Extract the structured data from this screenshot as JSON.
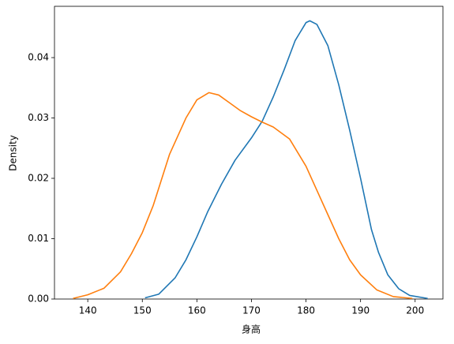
{
  "chart_data": {
    "type": "line",
    "xlabel": "身高",
    "ylabel": "Density",
    "xlim": [
      133.9,
      205.1
    ],
    "ylim": [
      0,
      0.0485
    ],
    "xticks": [
      140,
      150,
      160,
      170,
      180,
      190,
      200
    ],
    "yticks": [
      {
        "value": 0,
        "label": "0.00"
      },
      {
        "value": 0.01,
        "label": "0.01"
      },
      {
        "value": 0.02,
        "label": "0.02"
      },
      {
        "value": 0.03,
        "label": "0.03"
      },
      {
        "value": 0.04,
        "label": "0.04"
      }
    ],
    "series": [
      {
        "color": "#1f77b4",
        "x": [
          150.5,
          153,
          156,
          158,
          160,
          162,
          164.5,
          167,
          170,
          172,
          174,
          176,
          178,
          180,
          180.7,
          182,
          184,
          186,
          188,
          190,
          192,
          193.3,
          195,
          197,
          199,
          202.3
        ],
        "values": [
          0.0002,
          0.0008,
          0.0035,
          0.0065,
          0.0103,
          0.0145,
          0.019,
          0.023,
          0.0267,
          0.0295,
          0.0335,
          0.038,
          0.0428,
          0.0458,
          0.0461,
          0.0455,
          0.042,
          0.0355,
          0.028,
          0.02,
          0.0115,
          0.0077,
          0.004,
          0.0017,
          0.0006,
          0.0001
        ]
      },
      {
        "color": "#ff7f0e",
        "x": [
          137.3,
          140,
          143,
          146,
          148,
          150,
          152,
          155,
          158,
          160,
          162.2,
          164,
          166,
          168,
          170,
          172,
          174,
          177,
          180,
          183,
          186,
          188,
          190,
          193,
          196,
          199.5
        ],
        "values": [
          0.0001,
          0.0007,
          0.0018,
          0.0045,
          0.0075,
          0.011,
          0.0155,
          0.024,
          0.03,
          0.033,
          0.0342,
          0.0338,
          0.0325,
          0.0312,
          0.0302,
          0.0293,
          0.0285,
          0.0265,
          0.022,
          0.016,
          0.01,
          0.0065,
          0.004,
          0.0015,
          0.0004,
          0.0001
        ]
      }
    ]
  }
}
